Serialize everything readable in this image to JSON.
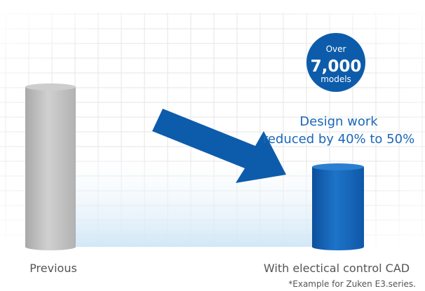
{
  "chart_data": {
    "type": "bar",
    "categories": [
      "Previous",
      "With electical control CAD"
    ],
    "values": [
      100,
      50
    ],
    "ylim": [
      0,
      100
    ],
    "grid": true,
    "annotations": {
      "badge": {
        "line1": "Over",
        "line2": "7,000",
        "line3": "models"
      },
      "reduction_line1": "Design work",
      "reduction_line2": "reduced by 40% to 50%",
      "footnote": "*Example for Zuken E3.series."
    },
    "colors": {
      "previous": "#bdbdbd",
      "after": "#1565c0",
      "badge": "#0d5cab",
      "arrow": "#0d5cab",
      "text_blue": "#1a68b8",
      "grid": "#e6e6e6"
    }
  }
}
